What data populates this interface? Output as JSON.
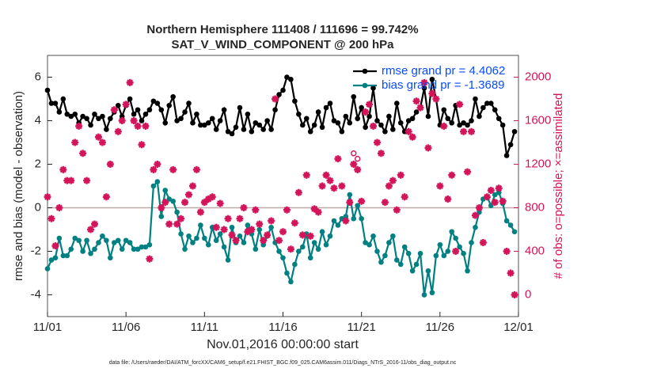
{
  "chart_data": {
    "type": "line",
    "title": "Northern Hemisphere 111408 / 111696 = 99.742%",
    "subtitle": "SAT_V_WIND_COMPONENT @ 200 hPa",
    "x_label": "Nov.01,2016 00:00:00 start",
    "y_label": "rmse and bias (model - observation)",
    "y2_label": "# of obs: o=possible; ×=assimilated",
    "footnote": "data file: /Users/raeder/DAI/ATM_forcXX/CAM6_setup/f.e21.FHIST_BGC.f09_025.CAM6assim.011/Diags_NTrS_2016-11/obs_diag_output.nc",
    "xlim": [
      0,
      30
    ],
    "xticks": [
      {
        "value": 0,
        "label": "11/01"
      },
      {
        "value": 5,
        "label": "11/06"
      },
      {
        "value": 10,
        "label": "11/11"
      },
      {
        "value": 15,
        "label": "11/16"
      },
      {
        "value": 20,
        "label": "11/21"
      },
      {
        "value": 25,
        "label": "11/26"
      },
      {
        "value": 30,
        "label": "12/01"
      }
    ],
    "ylim": [
      -5,
      7
    ],
    "yticks": [
      -4,
      -2,
      0,
      2,
      4,
      6
    ],
    "y2lim": [
      -200,
      2200
    ],
    "y2ticks": [
      0,
      400,
      800,
      1200,
      1600,
      2000
    ],
    "legend": "upper right",
    "x": [
      0,
      0.25,
      0.5,
      0.75,
      1,
      1.25,
      1.5,
      1.75,
      2,
      2.25,
      2.5,
      2.75,
      3,
      3.25,
      3.5,
      3.75,
      4,
      4.25,
      4.5,
      4.75,
      5,
      5.25,
      5.5,
      5.75,
      6,
      6.25,
      6.5,
      6.75,
      7,
      7.25,
      7.5,
      7.75,
      8,
      8.25,
      8.5,
      8.75,
      9,
      9.25,
      9.5,
      9.75,
      10,
      10.25,
      10.5,
      10.75,
      11,
      11.25,
      11.5,
      11.75,
      12,
      12.25,
      12.5,
      12.75,
      13,
      13.25,
      13.5,
      13.75,
      14,
      14.25,
      14.5,
      14.75,
      15,
      15.25,
      15.5,
      15.75,
      16,
      16.25,
      16.5,
      16.75,
      17,
      17.25,
      17.5,
      17.75,
      18,
      18.25,
      18.5,
      18.75,
      19,
      19.25,
      19.5,
      19.75,
      20,
      20.25,
      20.5,
      20.75,
      21,
      21.25,
      21.5,
      21.75,
      22,
      22.25,
      22.5,
      22.75,
      23,
      23.25,
      23.5,
      23.75,
      24,
      24.25,
      24.5,
      24.75,
      25,
      25.25,
      25.5,
      25.75,
      26,
      26.25,
      26.5,
      26.75,
      27,
      27.25,
      27.5,
      27.75,
      28,
      28.25,
      28.5,
      28.75,
      29,
      29.25,
      29.5,
      29.75
    ],
    "series": [
      {
        "name": "rmse grand pr = 4.4062",
        "color": "#000000",
        "marker": "dot",
        "values": [
          5.4,
          4.8,
          4.8,
          4.4,
          5.0,
          4.3,
          4.2,
          4.3,
          3.9,
          4.2,
          4.1,
          3.8,
          4.3,
          4.1,
          4.2,
          3.6,
          4.1,
          4.4,
          4.7,
          4.2,
          4.7,
          5.0,
          4.3,
          4.5,
          4.0,
          4.3,
          4.5,
          4.9,
          4.8,
          4.5,
          3.9,
          4.7,
          5.1,
          4.0,
          4.1,
          4.4,
          4.8,
          3.9,
          4.3,
          3.8,
          3.8,
          3.9,
          4.1,
          3.6,
          4.0,
          4.5,
          3.5,
          3.4,
          3.7,
          4.6,
          3.6,
          4.3,
          3.5,
          3.9,
          3.8,
          3.6,
          4.0,
          3.6,
          4.5,
          5.2,
          5.4,
          6.0,
          5.9,
          4.9,
          4.3,
          3.8,
          4.1,
          3.5,
          3.8,
          4.4,
          3.7,
          4.6,
          4.8,
          4.0,
          3.9,
          3.5,
          4.2,
          3.9,
          5.1,
          4.1,
          4.6,
          3.7,
          4.2,
          5.5,
          4.0,
          3.8,
          3.5,
          4.2,
          3.6,
          4.8,
          3.9,
          3.5,
          4.0,
          4.1,
          4.4,
          4.6,
          5.5,
          4.2,
          5.9,
          5.0,
          3.8,
          4.5,
          4.1,
          3.9,
          4.7,
          3.8,
          3.9,
          3.8,
          4.0,
          5.0,
          4.2,
          4.6,
          4.8,
          4.8,
          4.5,
          4.1,
          3.8,
          2.4,
          2.9,
          3.5
        ]
      },
      {
        "name": "bias grand pr = -1.3689",
        "color": "#008080",
        "marker": "dot",
        "values": [
          -2.8,
          -2.4,
          -2.3,
          -1.4,
          -2.2,
          -2.2,
          -1.9,
          -1.4,
          -1.5,
          -2.0,
          -1.5,
          -2.1,
          -1.9,
          -1.6,
          -1.3,
          -1.5,
          -2.3,
          -1.6,
          -1.5,
          -1.9,
          -1.5,
          -1.6,
          -1.9,
          -1.9,
          -1.8,
          -1.8,
          -1.7,
          1.0,
          1.2,
          -0.4,
          0.8,
          0.4,
          0.3,
          -0.2,
          -1.2,
          -1.9,
          -1.3,
          -1.6,
          -1.4,
          -0.8,
          -1.4,
          -1.7,
          -0.9,
          -1.5,
          -1.2,
          -1.8,
          -2.4,
          -0.9,
          -1.6,
          -1.3,
          -1.6,
          -0.8,
          -1.2,
          -1.9,
          -1.0,
          -1.7,
          -1.3,
          -0.9,
          -1.6,
          -2.0,
          -2.3,
          -3.0,
          -3.4,
          -2.6,
          -2.0,
          -1.8,
          -1.2,
          -2.3,
          -1.6,
          -1.9,
          -1.1,
          -1.7,
          -1.3,
          -0.6,
          -0.8,
          -0.5,
          -0.4,
          0.6,
          -0.5,
          0.1,
          -0.5,
          -1.6,
          -1.7,
          -1.3,
          -2.0,
          -2.5,
          -2.2,
          -1.6,
          -1.3,
          -2.4,
          -2.6,
          -1.8,
          -2.1,
          -2.9,
          -2.6,
          -2.1,
          -4.0,
          -2.9,
          -3.9,
          -2.2,
          -1.7,
          -2.2,
          -2.0,
          -1.1,
          -1.4,
          -1.8,
          -2.1,
          -2.9,
          -1.6,
          -0.9,
          -0.2,
          0.4,
          0.5,
          0.1,
          0.6,
          0.7,
          0.2,
          -0.6,
          -0.8,
          -1.1
        ]
      },
      {
        "axis": "y2",
        "color": "#d4145a",
        "marker": "asterisk",
        "values": [
          900,
          700,
          450,
          800,
          1150,
          1050,
          1050,
          1400,
          1550,
          1300,
          1050,
          600,
          650,
          1450,
          1400,
          900,
          1200,
          1700,
          1500,
          1600,
          1750,
          1950,
          1600,
          1550,
          1380,
          1550,
          330,
          1150,
          1200,
          800,
          850,
          650,
          1150,
          650,
          700,
          850,
          920,
          1000,
          1150,
          760,
          850,
          880,
          900,
          620,
          840,
          600,
          700,
          550,
          500,
          700,
          800,
          580,
          600,
          780,
          650,
          500,
          550,
          680,
          1800,
          500,
          580,
          780,
          420,
          660,
          940,
          550,
          1100,
          540,
          790,
          760,
          1000,
          1100,
          1050,
          980,
          1250,
          1000,
          680,
          850,
          1200,
          1150,
          860,
          1680,
          1750,
          1550,
          1400,
          1300,
          850,
          1000,
          1050,
          780,
          1100,
          900,
          1500,
          1450,
          1780,
          1720,
          1950,
          1350,
          1850,
          1800,
          1000,
          1550,
          880,
          1100,
          400,
          1750,
          1500,
          1130,
          1500,
          730,
          800,
          480,
          900,
          960,
          850,
          980,
          860,
          400,
          200,
          0
        ]
      },
      {
        "axis": "y2",
        "color": "#d4145a",
        "marker": "circle",
        "x": [
          19.5,
          19.75,
          23.25
        ],
        "values": [
          1300,
          1250,
          1450
        ]
      }
    ]
  }
}
